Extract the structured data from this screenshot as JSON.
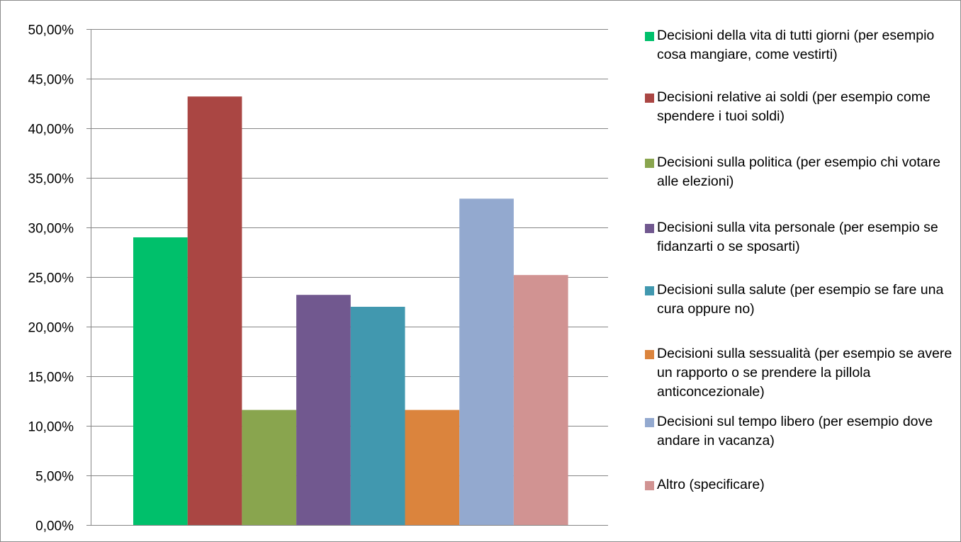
{
  "chart_data": {
    "type": "bar",
    "title": "",
    "xlabel": "",
    "ylabel": "",
    "ylim": [
      0,
      0.5
    ],
    "y_ticks": [
      "0,00%",
      "5,00%",
      "10,00%",
      "15,00%",
      "20,00%",
      "25,00%",
      "30,00%",
      "35,00%",
      "40,00%",
      "45,00%",
      "50,00%"
    ],
    "grid": true,
    "legend_position": "right",
    "series": [
      {
        "name": "Decisioni della vita di tutti giorni (per esempio cosa mangiare, come vestirti)",
        "value": 0.29,
        "color": "#00c06b"
      },
      {
        "name": "Decisioni relative ai soldi (per esempio come spendere i tuoi soldi)",
        "value": 0.432,
        "color": "#aa4643"
      },
      {
        "name": "Decisioni sulla politica (per esempio chi votare alle elezioni)",
        "value": 0.116,
        "color": "#89a54e"
      },
      {
        "name": "Decisioni sulla vita personale (per esempio se fidanzarti o se sposarti)",
        "value": 0.232,
        "color": "#71588f"
      },
      {
        "name": "Decisioni sulla salute (per esempio se fare una cura oppure no)",
        "value": 0.22,
        "color": "#4198af"
      },
      {
        "name": "Decisioni sulla sessualità (per esempio se avere un rapporto o se prendere la pillola anticoncezionale)",
        "value": 0.116,
        "color": "#db843d"
      },
      {
        "name": "Decisioni sul tempo libero (per esempio dove andare in vacanza)",
        "value": 0.329,
        "color": "#93a9cf"
      },
      {
        "name": "Altro (specificare)",
        "value": 0.252,
        "color": "#d19392"
      }
    ]
  }
}
